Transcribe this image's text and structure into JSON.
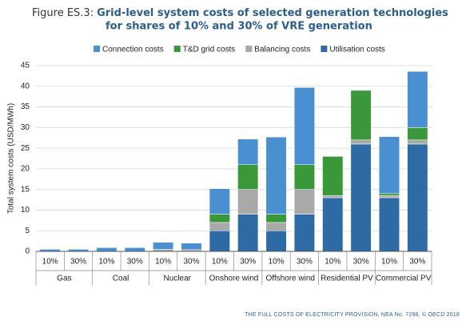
{
  "chart_data": {
    "type": "stacked-bar",
    "figure_label": "Figure ES.3:",
    "title_lines": [
      "Grid-level system costs of selected generation technologies",
      "for shares of 10% and 30% of VRE generation"
    ],
    "y_label": "Total system costs (USD/MWh)",
    "footer": "THE FULL COSTS OF ELECTRICITY PROVISION, NEA No. 7298, © OECD 2018",
    "categories": [
      "10%",
      "30%",
      "10%",
      "30%",
      "10%",
      "30%",
      "10%",
      "30%",
      "10%",
      "30%",
      "10%",
      "30%",
      "10%",
      "30%"
    ],
    "groups": [
      "Gas",
      "Coal",
      "Nuclear",
      "Onshore wind",
      "Offshore wind",
      "Residential PV",
      "Commercial PV"
    ],
    "series": [
      {
        "name": "Utilisation costs",
        "color": "#2e6aa3",
        "values": [
          0,
          0,
          0,
          0,
          0,
          0,
          5,
          9,
          5,
          9,
          13,
          26,
          13,
          26
        ]
      },
      {
        "name": "Balancing costs",
        "color": "#a9a9a9",
        "values": [
          0,
          0,
          0,
          0,
          0.5,
          0.4,
          2,
          6,
          2,
          6,
          0.5,
          1,
          0.5,
          1
        ]
      },
      {
        "name": "T&D grid costs",
        "color": "#3a973a",
        "values": [
          0,
          0,
          0,
          0,
          0,
          0,
          2,
          6,
          2,
          6,
          9.5,
          12,
          0.5,
          3
        ]
      },
      {
        "name": "Connection costs",
        "color": "#4a8fd0",
        "values": [
          0.5,
          0.5,
          0.9,
          0.9,
          1.7,
          1.6,
          6.2,
          6.2,
          18.7,
          18.7,
          0,
          0,
          13.8,
          13.6
        ]
      }
    ],
    "legend_order": [
      3,
      2,
      1,
      0
    ],
    "ylim": [
      0,
      45
    ],
    "yticks": [
      0,
      5,
      10,
      15,
      20,
      25,
      30,
      35,
      40,
      45
    ],
    "grid": true
  }
}
